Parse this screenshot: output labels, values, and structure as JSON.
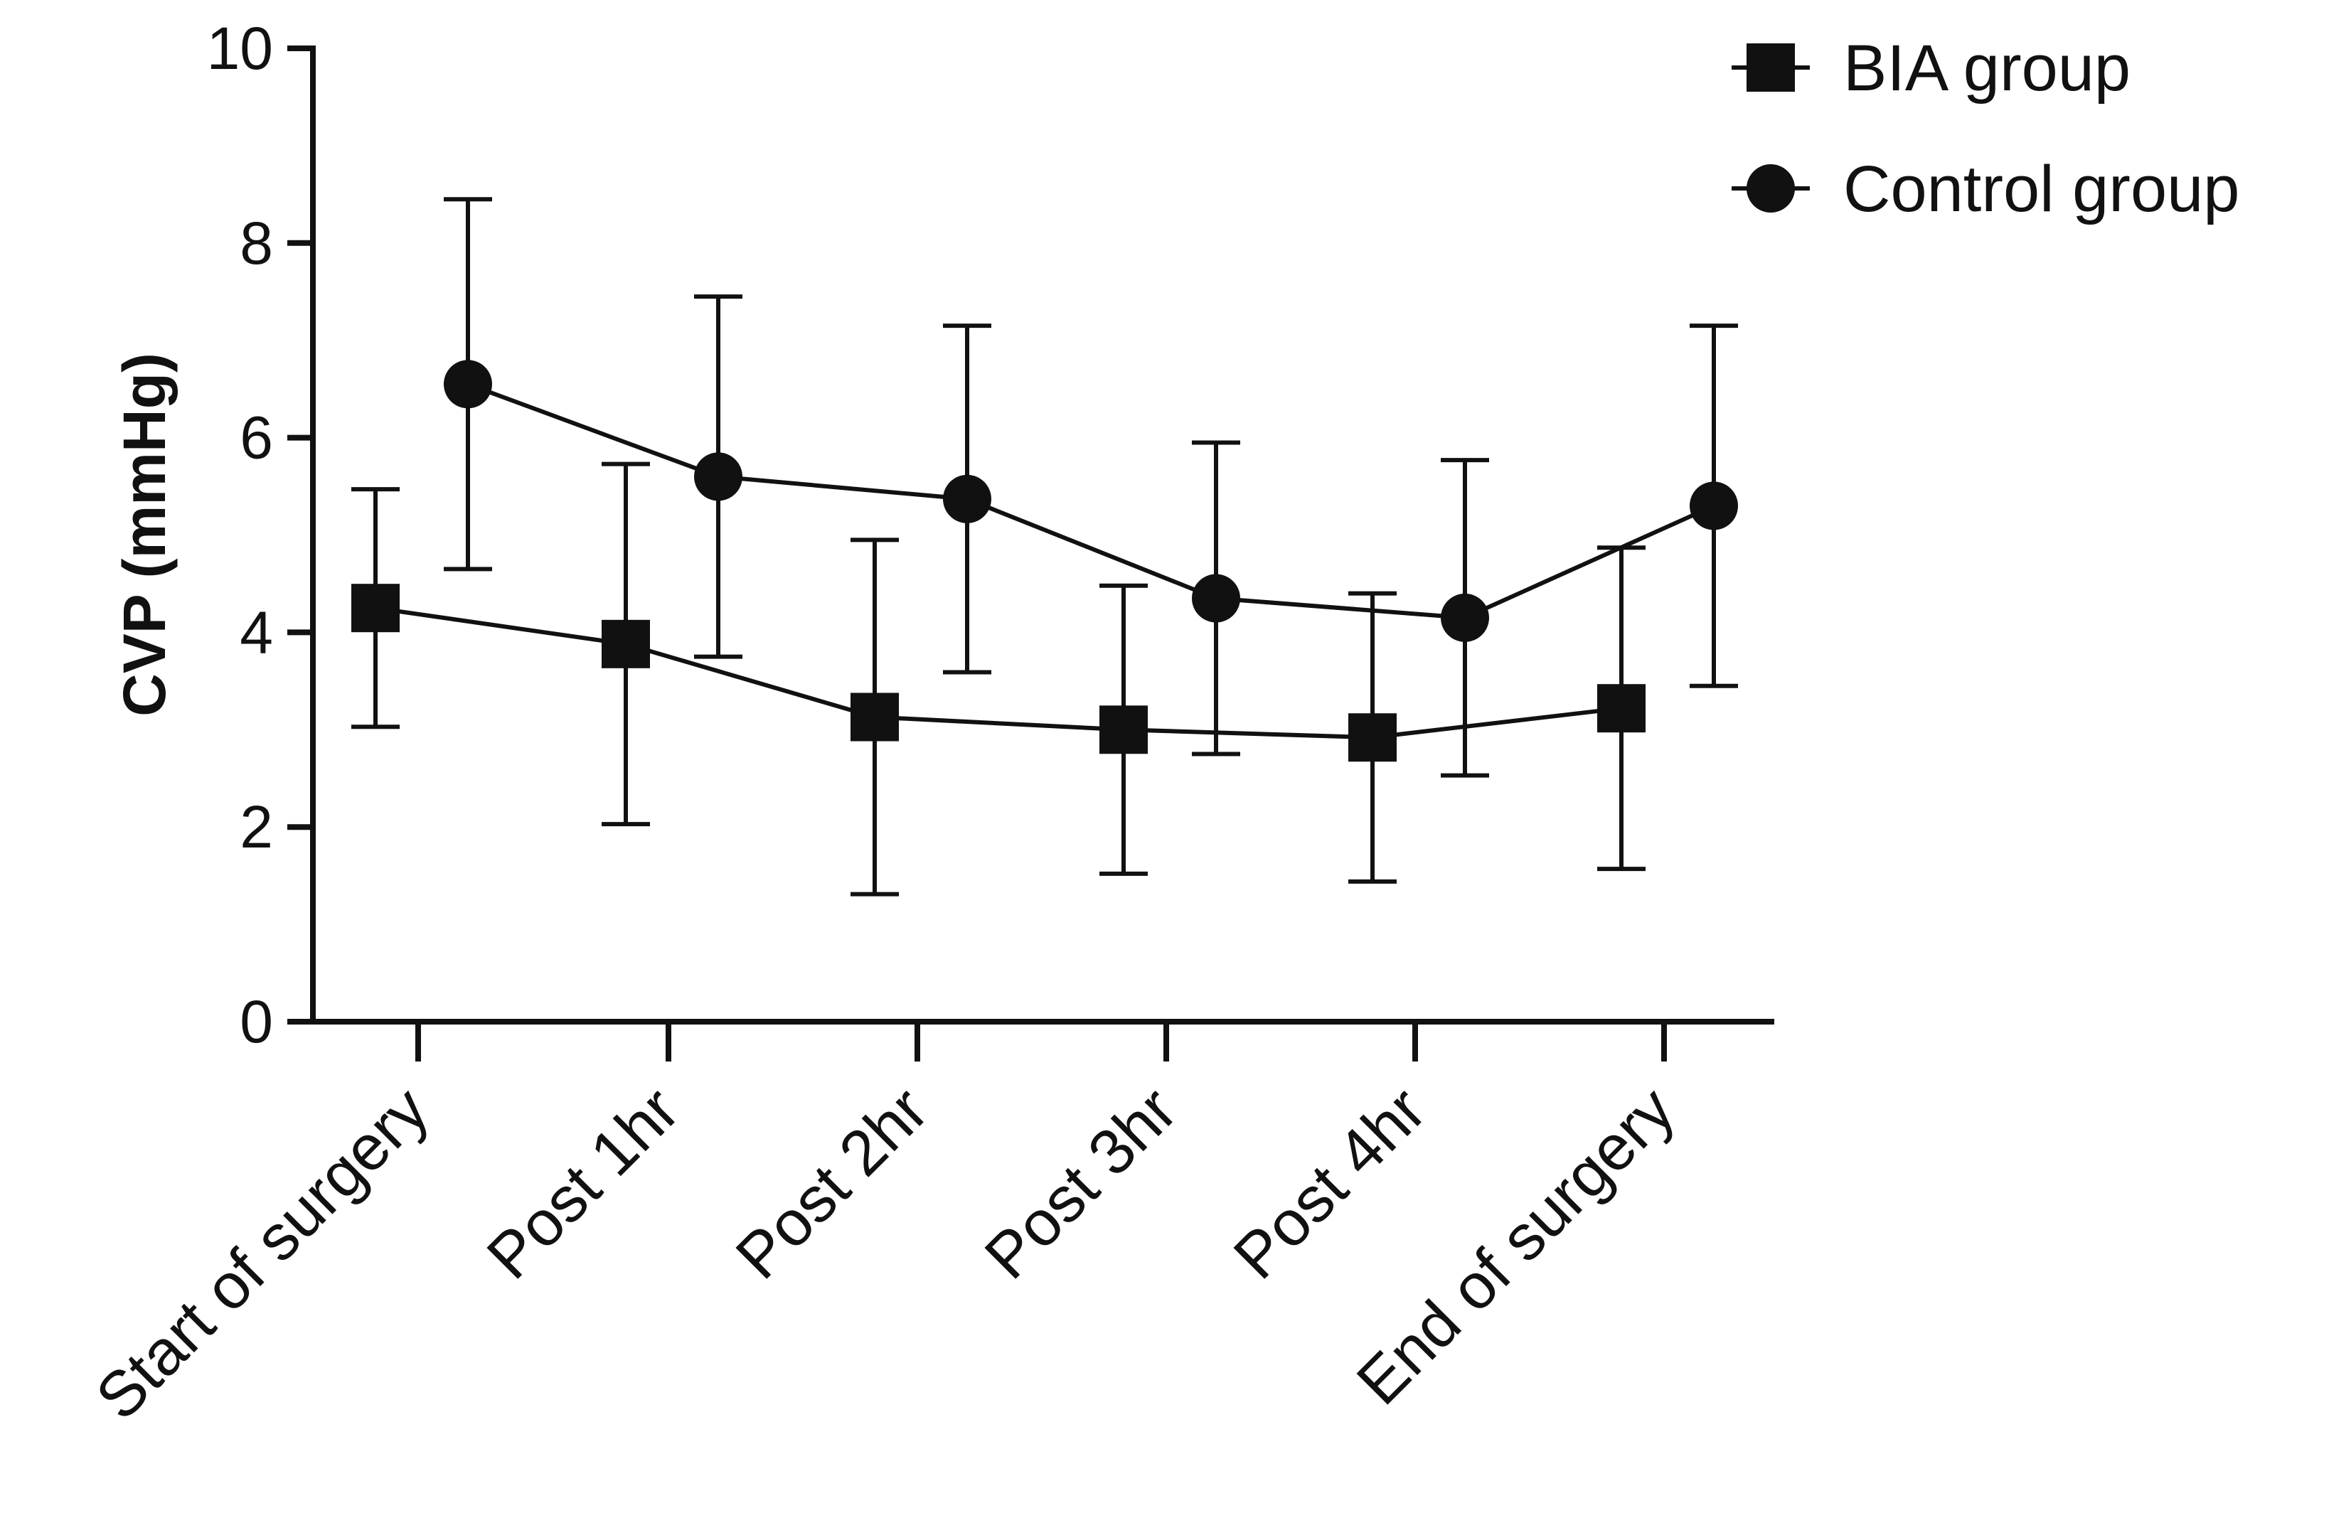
{
  "chart_data": {
    "type": "line",
    "title": "",
    "xlabel": "",
    "ylabel": "CVP (mmHg)",
    "ylim": [
      0,
      10
    ],
    "yticks": [
      0,
      2,
      4,
      6,
      8,
      10
    ],
    "categories": [
      "Start of surgery",
      "Post 1hr",
      "Post 2hr",
      "Post 3hr",
      "Post 4hr",
      "End of surgery"
    ],
    "legend_position": "top-right",
    "series": [
      {
        "name": "BIA group",
        "marker": "square",
        "values": [
          4.25,
          3.88,
          3.13,
          3.0,
          2.92,
          3.22
        ],
        "error": [
          1.22,
          1.85,
          1.82,
          1.48,
          1.48,
          1.65
        ]
      },
      {
        "name": "Control group",
        "marker": "circle",
        "values": [
          6.55,
          5.6,
          5.37,
          4.35,
          4.15,
          5.3
        ],
        "error": [
          1.9,
          1.85,
          1.78,
          1.6,
          1.62,
          1.85
        ]
      }
    ]
  }
}
